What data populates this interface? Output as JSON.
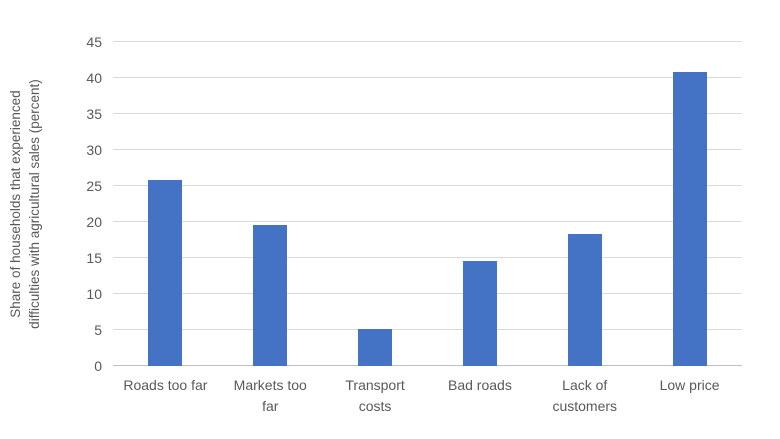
{
  "chart_data": {
    "type": "bar",
    "title": "",
    "xlabel": "",
    "ylabel": "Share of households that experienced difficulties with agricultural sales (percent)",
    "ylabel_lines": [
      "Share of households that experienced",
      "difficulties with agricultural sales (percent)"
    ],
    "categories": [
      "Roads too far",
      "Markets too far",
      "Transport costs",
      "Bad roads",
      "Lack of customers",
      "Low price"
    ],
    "category_label_lines": [
      [
        "Roads too far"
      ],
      [
        "Markets too",
        "far"
      ],
      [
        "Transport",
        "costs"
      ],
      [
        "Bad roads"
      ],
      [
        "Lack of",
        "customers"
      ],
      [
        "Low price"
      ]
    ],
    "values": [
      25.8,
      19.6,
      5.1,
      14.6,
      18.4,
      40.9
    ],
    "ylim": [
      0,
      45
    ],
    "ytick_step": 5,
    "yticks": [
      0,
      5,
      10,
      15,
      20,
      25,
      30,
      35,
      40,
      45
    ],
    "grid": "horizontal",
    "legend": "none",
    "colors": {
      "bar": "#4472C4",
      "gridline": "#D9D9D9",
      "axis_line": "#BFBFBF",
      "text": "#595959",
      "background": "#FFFFFF"
    }
  }
}
